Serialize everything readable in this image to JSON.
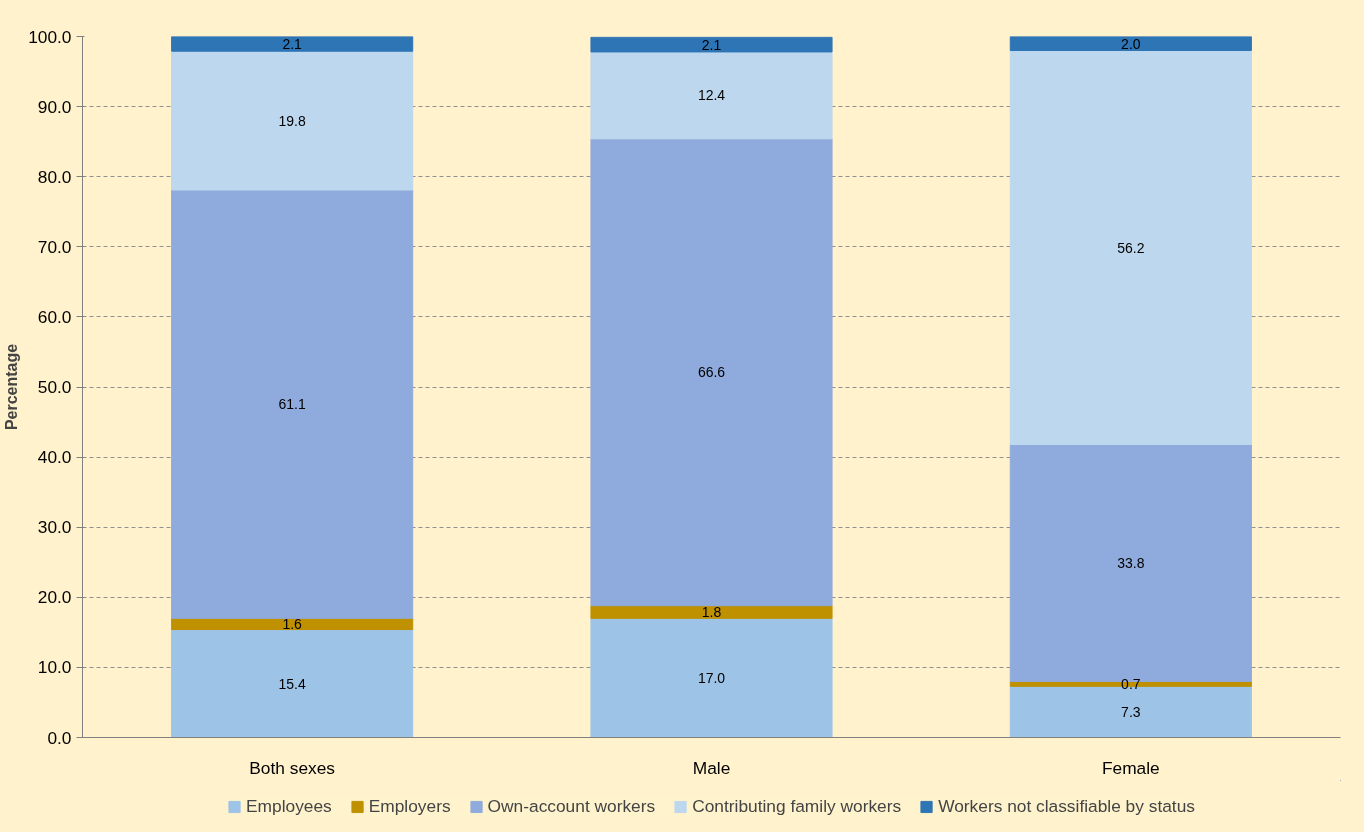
{
  "chart_data": {
    "type": "bar",
    "stacked": true,
    "ylabel": "Percentage",
    "categories": [
      "Both sexes",
      "Male",
      "Female"
    ],
    "series": [
      {
        "name": "Employees",
        "color": "#9dc3e6",
        "values": [
          15.4,
          17.0,
          7.3
        ],
        "value_labels": [
          "15.4",
          "17.0",
          "7.3"
        ]
      },
      {
        "name": "Employers",
        "color": "#bf9000",
        "values": [
          1.6,
          1.8,
          0.7
        ],
        "value_labels": [
          "1.6",
          "1.8",
          "0.7"
        ]
      },
      {
        "name": "Own-account workers",
        "color": "#8faadc",
        "values": [
          61.1,
          66.6,
          33.8
        ],
        "value_labels": [
          "61.1",
          "66.6",
          "33.8"
        ]
      },
      {
        "name": "Contributing family workers",
        "color": "#bdd7ee",
        "values": [
          19.8,
          12.4,
          56.2
        ],
        "value_labels": [
          "19.8",
          "12.4",
          "56.2"
        ]
      },
      {
        "name": "Workers not classifiable by status",
        "color": "#2e75b6",
        "values": [
          2.1,
          2.1,
          2.0
        ],
        "value_labels": [
          "2.1",
          "2.1",
          "2.0"
        ]
      }
    ],
    "ylim": [
      0,
      100
    ],
    "yticks": [
      {
        "value": 0,
        "label": "0.0"
      },
      {
        "value": 10,
        "label": "10.0"
      },
      {
        "value": 20,
        "label": "20.0"
      },
      {
        "value": 30,
        "label": "30.0"
      },
      {
        "value": 40,
        "label": "40.0"
      },
      {
        "value": 50,
        "label": "50.0"
      },
      {
        "value": 60,
        "label": "60.0"
      },
      {
        "value": 70,
        "label": "70.0"
      },
      {
        "value": 80,
        "label": "80.0"
      },
      {
        "value": 90,
        "label": "90.0"
      },
      {
        "value": 100,
        "label": "100.0"
      }
    ],
    "grid": "y",
    "legend": "bottom"
  }
}
